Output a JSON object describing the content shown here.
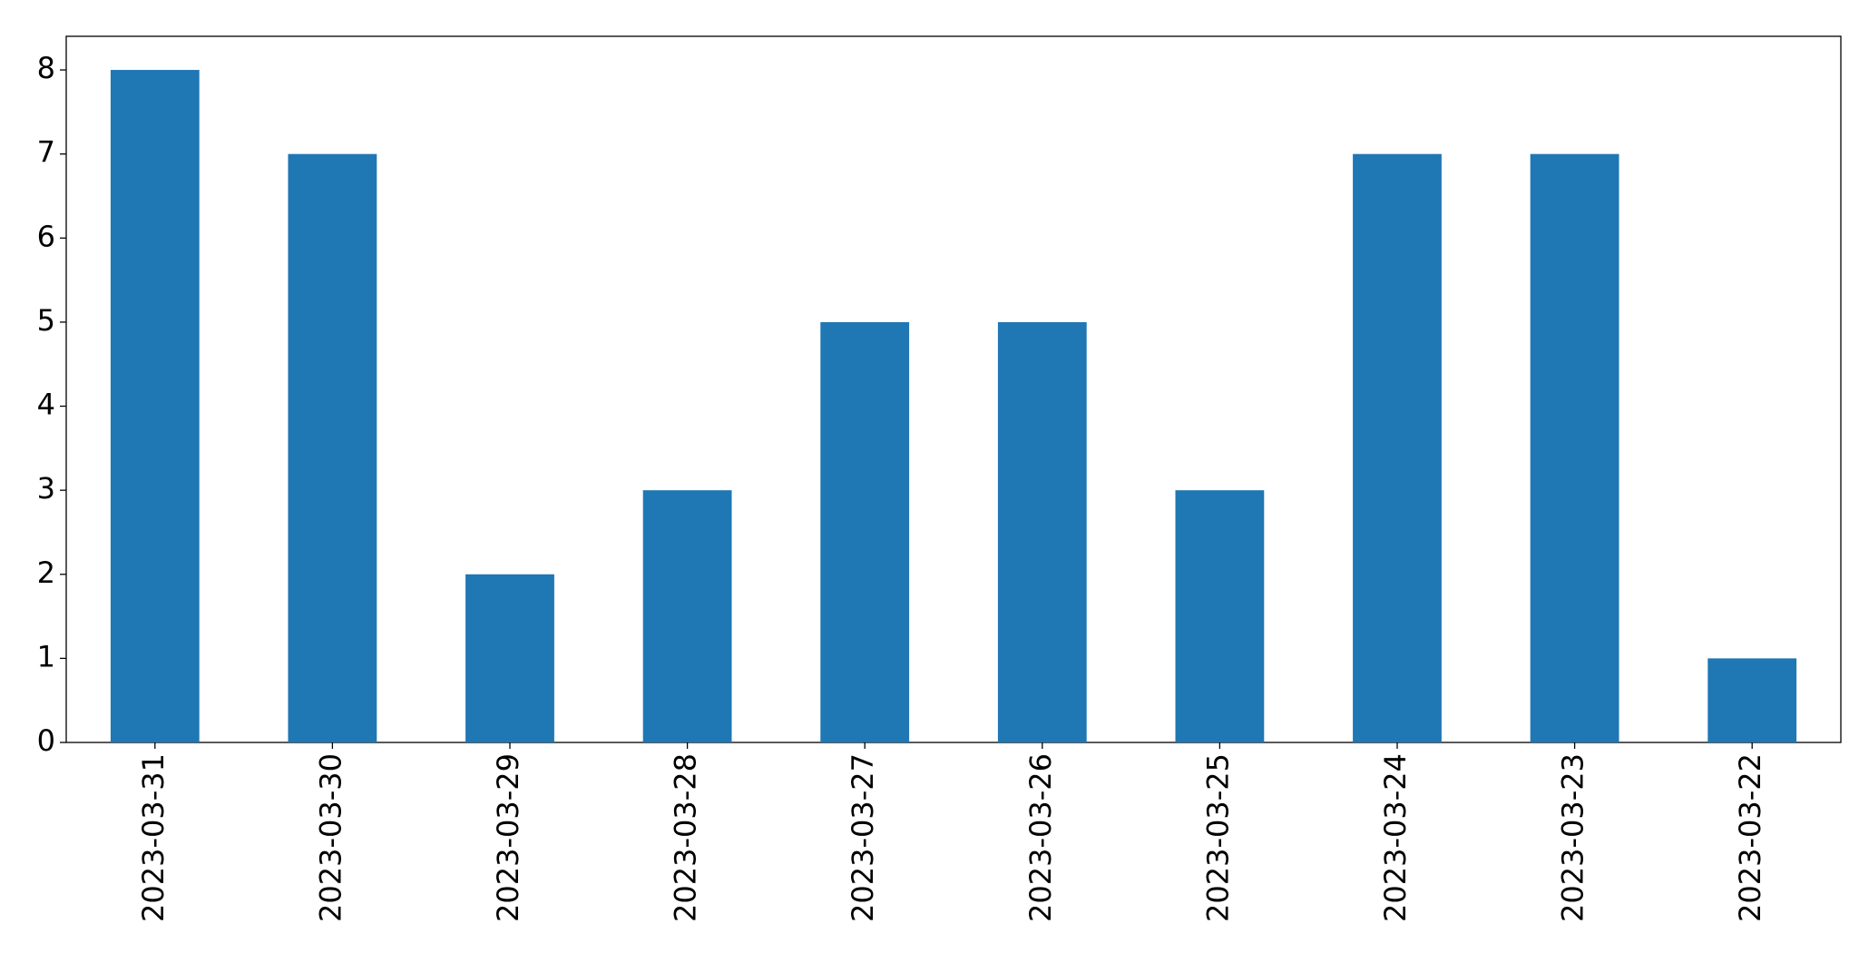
{
  "chart_data": {
    "type": "bar",
    "categories": [
      "2023-03-31",
      "2023-03-30",
      "2023-03-29",
      "2023-03-28",
      "2023-03-27",
      "2023-03-26",
      "2023-03-25",
      "2023-03-24",
      "2023-03-23",
      "2023-03-22"
    ],
    "values": [
      8,
      7,
      2,
      3,
      5,
      5,
      3,
      7,
      7,
      1
    ],
    "color": "#1f77b4",
    "ylim": [
      0,
      8.4
    ],
    "yticks": [
      0,
      1,
      2,
      3,
      4,
      5,
      6,
      7,
      8
    ],
    "grid": false
  }
}
